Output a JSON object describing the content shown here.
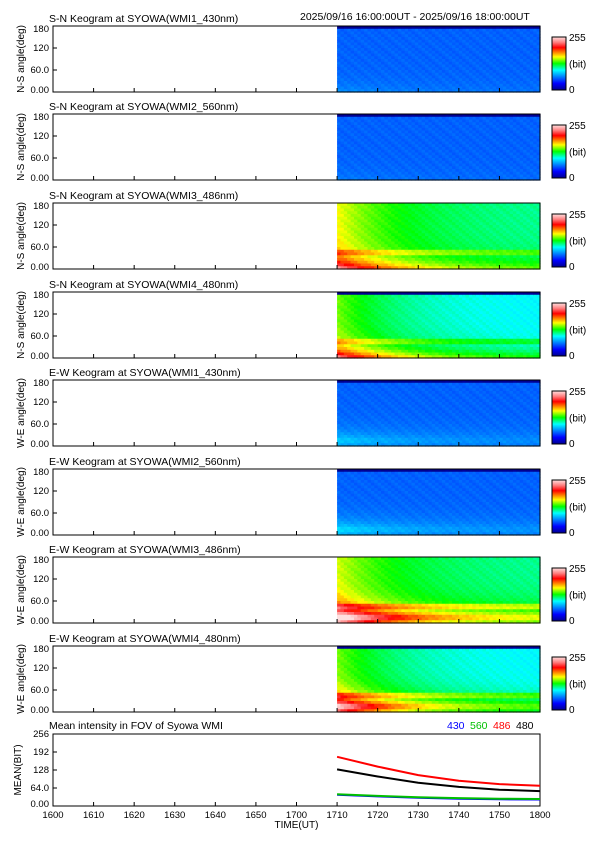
{
  "header": {
    "time_range": "2025/09/16 16:00:00UT - 2025/09/16 18:00:00UT"
  },
  "colorbar": {
    "max_label": "255",
    "unit_label": "(bit)",
    "min_label": "0"
  },
  "chart_data": [
    {
      "type": "heatmap",
      "title": "S-N Keogram at SYOWA(WMI1_430nm)",
      "ylabel": "N-S angle(deg)",
      "yticks": [
        "180",
        "120",
        "60.0",
        "0.00"
      ],
      "data_start": 1710,
      "base_level": 0.22,
      "low_glow": 0.05,
      "low_glow_angle": 0,
      "top_dark_band": true,
      "bright_line": 0
    },
    {
      "type": "heatmap",
      "title": "S-N Keogram at SYOWA(WMI2_560nm)",
      "ylabel": "N-S angle(deg)",
      "yticks": [
        "180",
        "120",
        "60.0",
        "0.00"
      ],
      "data_start": 1710,
      "base_level": 0.22,
      "low_glow": 0.03,
      "low_glow_angle": 0,
      "top_dark_band": true,
      "bright_line": 0
    },
    {
      "type": "heatmap",
      "title": "S-N Keogram at SYOWA(WMI3_486nm)",
      "ylabel": "N-S angle(deg)",
      "yticks": [
        "180",
        "120",
        "60.0",
        "0.00"
      ],
      "data_start": 1710,
      "base_level": 0.42,
      "start_level": 0.62,
      "low_glow": 0.35,
      "low_glow_angle": 0,
      "top_dark_band": false,
      "bright_line": 0.08
    },
    {
      "type": "heatmap",
      "title": "S-N Keogram at SYOWA(WMI4_480nm)",
      "ylabel": "N-S angle(deg)",
      "yticks": [
        "180",
        "120",
        "60.0",
        "0.00"
      ],
      "data_start": 1710,
      "base_level": 0.36,
      "start_level": 0.55,
      "low_glow": 0.4,
      "low_glow_angle": 0,
      "top_dark_band": true,
      "bright_line": 0.08
    },
    {
      "type": "heatmap",
      "title": "E-W Keogram at SYOWA(WMI1_430nm)",
      "ylabel": "W-E angle(deg)",
      "yticks": [
        "180",
        "120",
        "60.0",
        "0.00"
      ],
      "data_start": 1710,
      "base_level": 0.22,
      "low_glow": 0.12,
      "low_glow_angle": 15,
      "top_dark_band": true,
      "bright_line": 0
    },
    {
      "type": "heatmap",
      "title": "E-W Keogram at SYOWA(WMI2_560nm)",
      "ylabel": "W-E angle(deg)",
      "yticks": [
        "180",
        "120",
        "60.0",
        "0.00"
      ],
      "data_start": 1710,
      "base_level": 0.22,
      "low_glow": 0.14,
      "low_glow_angle": 15,
      "top_dark_band": true,
      "bright_line": 0
    },
    {
      "type": "heatmap",
      "title": "E-W Keogram at SYOWA(WMI3_486nm)",
      "ylabel": "W-E angle(deg)",
      "yticks": [
        "180",
        "120",
        "60.0",
        "0.00"
      ],
      "data_start": 1710,
      "base_level": 0.42,
      "start_level": 0.6,
      "low_glow": 0.55,
      "low_glow_angle": 15,
      "top_dark_band": false,
      "bright_line": 0.1
    },
    {
      "type": "heatmap",
      "title": "E-W Keogram at SYOWA(WMI4_480nm)",
      "ylabel": "W-E angle(deg)",
      "yticks": [
        "180",
        "120",
        "60.0",
        "0.00"
      ],
      "data_start": 1710,
      "base_level": 0.36,
      "start_level": 0.55,
      "low_glow": 0.5,
      "low_glow_angle": 15,
      "top_dark_band": true,
      "bright_line": 0.1
    },
    {
      "type": "line",
      "title": "Mean intensity in FOV of Syowa WMI",
      "ylabel": "MEAN(BIT)",
      "yticks": [
        "256",
        "192",
        "128",
        "64.0",
        "0.00"
      ],
      "ylim": [
        0,
        256
      ],
      "x": [
        1710,
        1720,
        1730,
        1740,
        1750,
        1800
      ],
      "series": [
        {
          "name": "430",
          "color": "#0000ff",
          "values": [
            40,
            34,
            29,
            26,
            24,
            23
          ]
        },
        {
          "name": "560",
          "color": "#00c000",
          "values": [
            42,
            36,
            31,
            28,
            26,
            25
          ]
        },
        {
          "name": "486",
          "color": "#ff0000",
          "values": [
            175,
            140,
            110,
            90,
            78,
            72
          ]
        },
        {
          "name": "480",
          "color": "#000000",
          "values": [
            130,
            105,
            83,
            68,
            58,
            53
          ]
        }
      ]
    }
  ],
  "xaxis": {
    "ticks": [
      1600,
      1610,
      1620,
      1630,
      1640,
      1650,
      1700,
      1710,
      1720,
      1730,
      1740,
      1750,
      1800
    ],
    "tick_labels": [
      "1600",
      "1610",
      "1620",
      "1630",
      "1640",
      "1650",
      "1700",
      "1710",
      "1720",
      "1730",
      "1740",
      "1750",
      "1800"
    ],
    "label": "TIME(UT)"
  }
}
